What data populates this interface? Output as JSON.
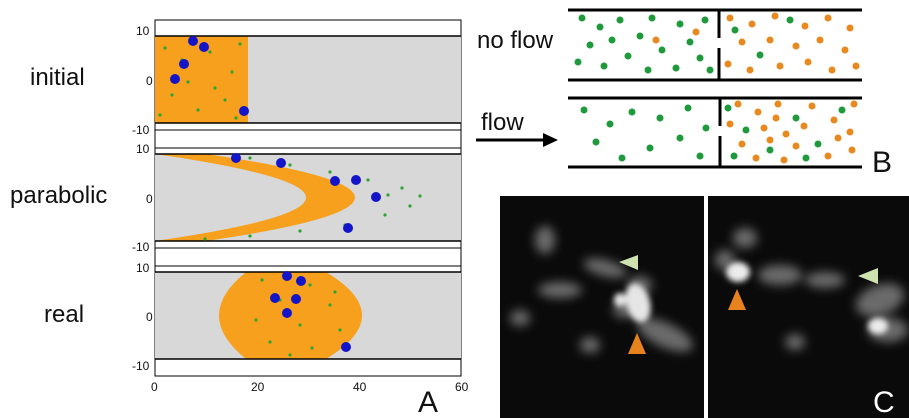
{
  "panel_a": {
    "letter": "A",
    "rows": [
      {
        "label": "initial",
        "shape": "rect"
      },
      {
        "label": "parabolic",
        "shape": "parabola"
      },
      {
        "label": "real",
        "shape": "real"
      }
    ],
    "y_ticks": [
      "10",
      "0",
      "-10"
    ],
    "x_ticks": [
      "0",
      "20",
      "40",
      "60"
    ],
    "xlim": [
      0,
      60
    ],
    "ylim": [
      -10,
      10
    ],
    "colors": {
      "band": "#f7a01e",
      "background": "#d8d8d8",
      "large_particle": "#1414c8",
      "small_particle": "#2fa32f"
    }
  },
  "panel_b": {
    "letter": "B",
    "no_flow_label": "no flow",
    "flow_label": "flow",
    "colors": {
      "green": "#1e9a3c",
      "orange": "#e8891f"
    }
  },
  "panel_c": {
    "letter": "C",
    "colors": {
      "arrow_green": "#cfe3b0",
      "arrow_orange": "#e8821e"
    }
  }
}
